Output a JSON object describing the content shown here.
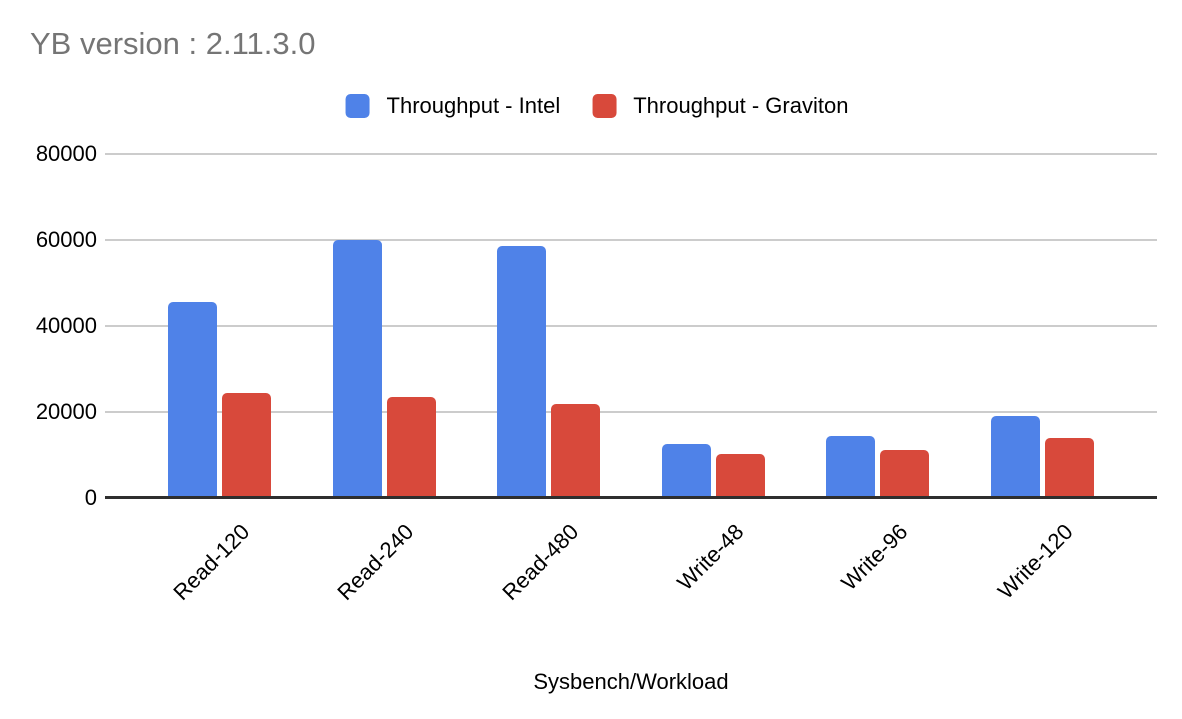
{
  "title": "YB version : 2.11.3.0",
  "chart_data": {
    "type": "bar",
    "title": "YB version : 2.11.3.0",
    "categories": [
      "Read-120",
      "Read-240",
      "Read-480",
      "Write-48",
      "Write-96",
      "Write-120"
    ],
    "series": [
      {
        "name": "Throughput - Intel",
        "color": "#4f82e8",
        "values": [
          45700,
          60100,
          58600,
          12600,
          14400,
          19100
        ]
      },
      {
        "name": "Throughput - Graviton",
        "color": "#d8493b",
        "values": [
          24500,
          23600,
          21900,
          10300,
          11200,
          13900
        ]
      }
    ],
    "xlabel": "Sysbench/Workload",
    "ylabel": "",
    "ylim": [
      0,
      80000
    ],
    "yticks": [
      0,
      20000,
      40000,
      60000,
      80000
    ],
    "grid": true,
    "legend_position": "top"
  },
  "colors": {
    "background": "#ffffff",
    "title_text": "#757575",
    "label_text": "#000000",
    "gridline": "#cccccc",
    "axis_line": "#2e2e2e"
  }
}
